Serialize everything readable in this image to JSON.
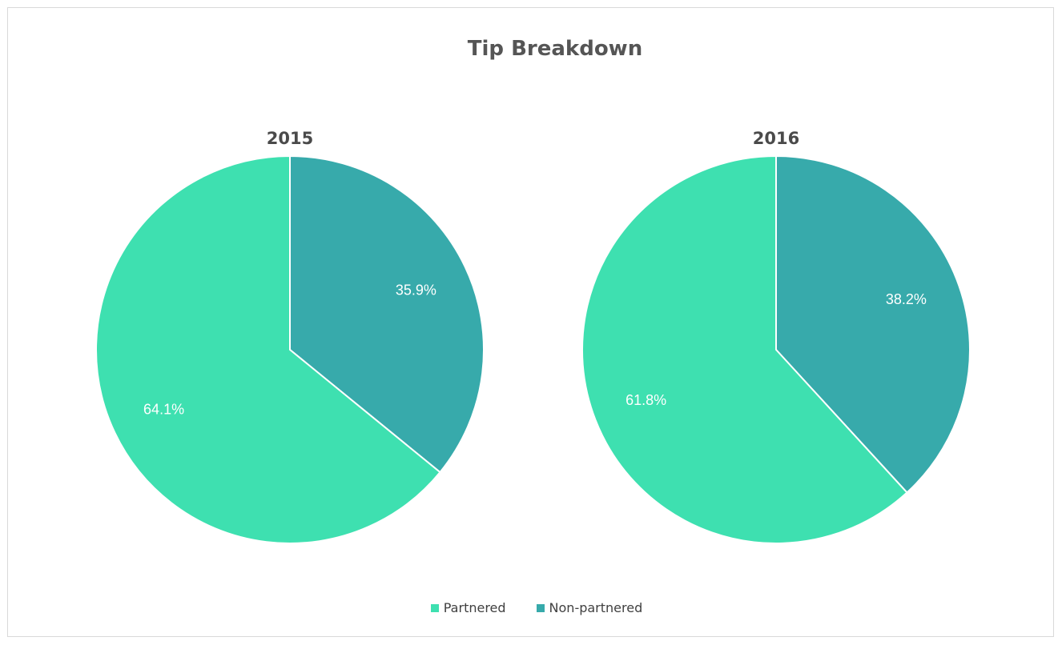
{
  "chart_data": {
    "type": "pie",
    "title": "Tip Breakdown",
    "legend_position": "bottom",
    "labels": [
      "Partnered",
      "Non-partnered"
    ],
    "colors": [
      "#3ee0b0",
      "#37aaab"
    ],
    "pies": [
      {
        "title": "2015",
        "values": [
          64.1,
          35.9
        ],
        "value_labels": [
          "64.1%",
          "35.9%"
        ]
      },
      {
        "title": "2016",
        "values": [
          61.8,
          38.2
        ],
        "value_labels": [
          "61.8%",
          "38.2%"
        ]
      }
    ]
  }
}
